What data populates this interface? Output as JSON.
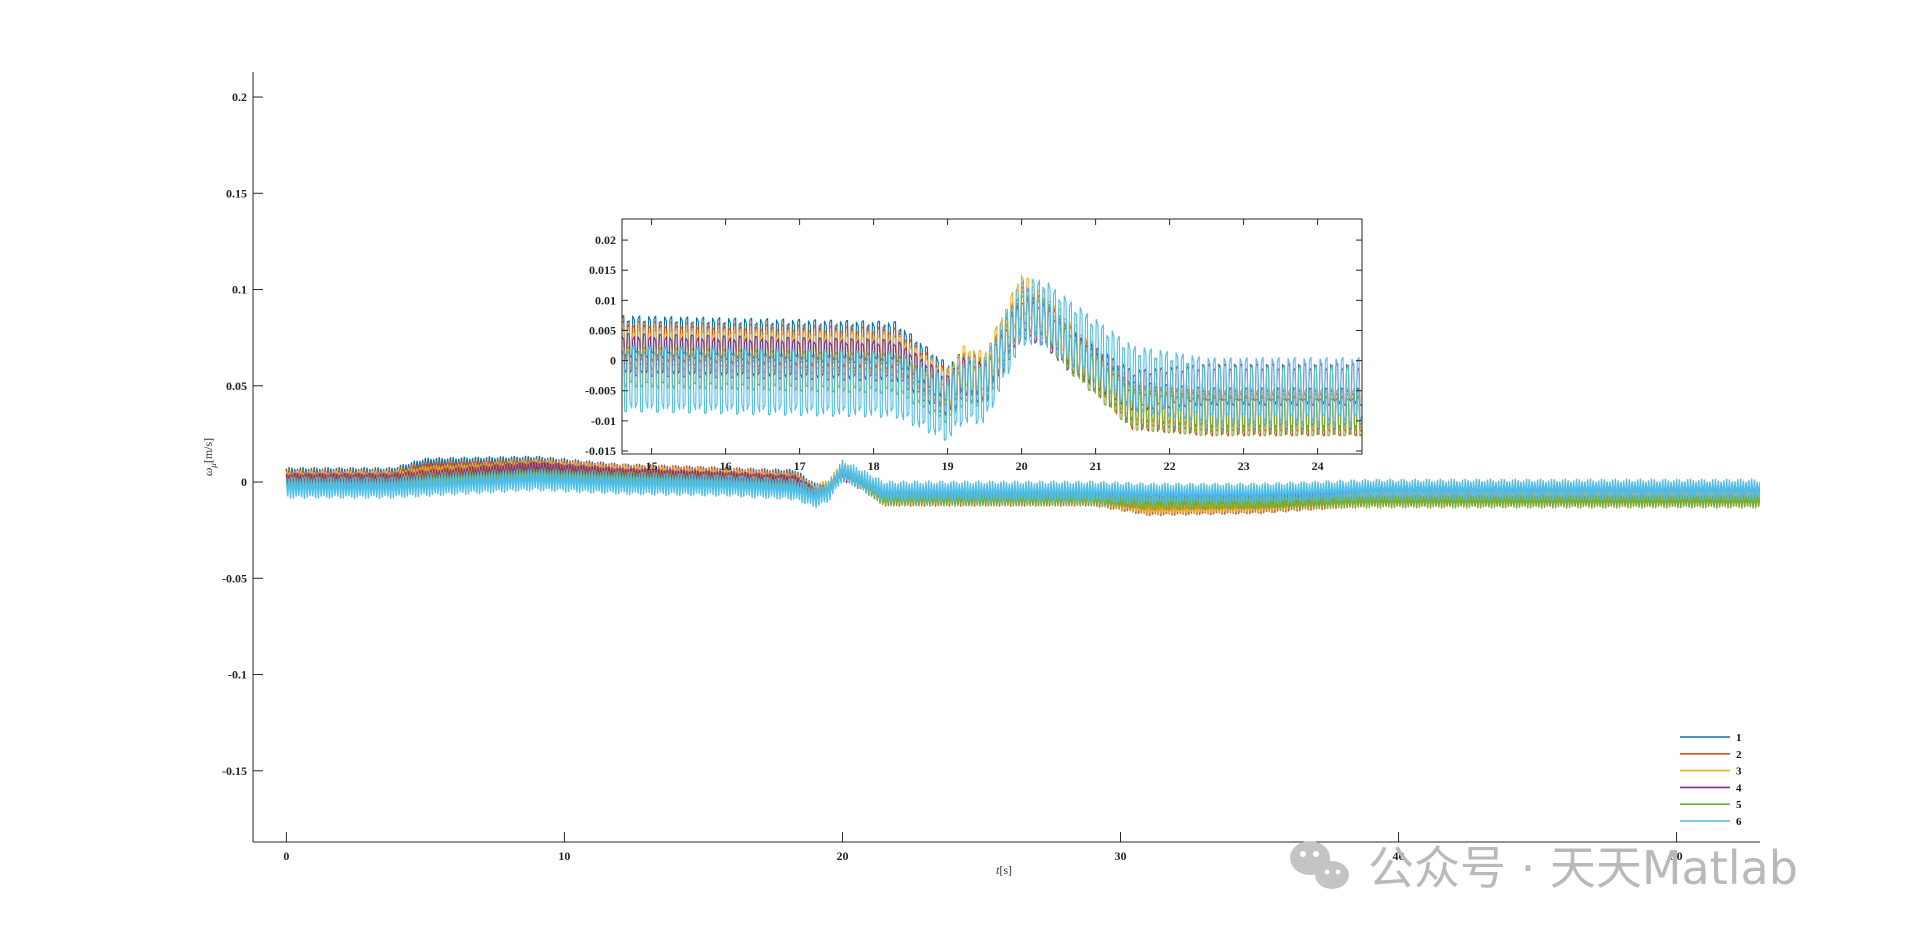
{
  "chart_data": [
    {
      "type": "line",
      "name": "main",
      "xlabel_var": "t",
      "xlabel_unit": "[s]",
      "ylabel_var": "ω",
      "ylabel_sub": "μ",
      "ylabel_unit": "[m/s]",
      "xlim": [
        -1.2,
        53
      ],
      "ylim": [
        -0.187,
        0.213
      ],
      "x_ticks": [
        0,
        10,
        20,
        30,
        40,
        50
      ],
      "y_ticks": [
        0.2,
        0.15,
        0.1,
        0.05,
        0,
        -0.05,
        -0.1,
        -0.15
      ],
      "y_tick_labels": [
        "0.2",
        "0.15",
        "0.1",
        "0.05",
        "0",
        "-0.05",
        "-0.1",
        "-0.15"
      ],
      "grid": false,
      "legend_position": "bottom-right",
      "series": [
        {
          "name": "1",
          "color": "#0072BD",
          "center": [
            [
              0,
              0.004
            ],
            [
              3.8,
              0.004
            ],
            [
              5,
              0.009
            ],
            [
              9,
              0.01
            ],
            [
              12,
              0.006
            ],
            [
              16,
              0.004
            ],
            [
              18.3,
              0.003
            ],
            [
              19,
              -0.004
            ],
            [
              19.5,
              -0.003
            ],
            [
              20,
              0.005
            ],
            [
              20.6,
              0.001
            ],
            [
              21.5,
              -0.008
            ],
            [
              29,
              -0.008
            ],
            [
              31,
              -0.012
            ],
            [
              35,
              -0.011
            ],
            [
              39,
              -0.006
            ],
            [
              53,
              -0.006
            ]
          ],
          "amp": 0.0035
        },
        {
          "name": "2",
          "color": "#D95319",
          "center": [
            [
              0,
              0.003
            ],
            [
              3.8,
              0.003
            ],
            [
              5,
              0.007
            ],
            [
              9,
              0.009
            ],
            [
              12,
              0.006
            ],
            [
              16,
              0.004
            ],
            [
              18.3,
              0.002
            ],
            [
              19,
              -0.005
            ],
            [
              19.5,
              -0.003
            ],
            [
              20,
              0.006
            ],
            [
              20.6,
              0.001
            ],
            [
              21.5,
              -0.009
            ],
            [
              29,
              -0.009
            ],
            [
              31,
              -0.014
            ],
            [
              35,
              -0.013
            ],
            [
              39,
              -0.009
            ],
            [
              53,
              -0.009
            ]
          ],
          "amp": 0.0035
        },
        {
          "name": "3",
          "color": "#EDB120",
          "center": [
            [
              0,
              0.002
            ],
            [
              3.8,
              0.002
            ],
            [
              5,
              0.005
            ],
            [
              9,
              0.008
            ],
            [
              12,
              0.005
            ],
            [
              16,
              0.003
            ],
            [
              18.3,
              0.001
            ],
            [
              19,
              -0.005
            ],
            [
              19.5,
              -0.002
            ],
            [
              20,
              0.007
            ],
            [
              20.6,
              0.002
            ],
            [
              21.5,
              -0.008
            ],
            [
              29,
              -0.008
            ],
            [
              31,
              -0.013
            ],
            [
              35,
              -0.012
            ],
            [
              39,
              -0.008
            ],
            [
              53,
              -0.008
            ]
          ],
          "amp": 0.0035
        },
        {
          "name": "4",
          "color": "#7E2F8E",
          "center": [
            [
              0,
              0.001
            ],
            [
              3.8,
              0.001
            ],
            [
              5,
              0.003
            ],
            [
              9,
              0.007
            ],
            [
              12,
              0.004
            ],
            [
              16,
              0.002
            ],
            [
              18.3,
              0.0
            ],
            [
              19,
              -0.006
            ],
            [
              19.5,
              -0.004
            ],
            [
              20,
              0.004
            ],
            [
              20.6,
              0.0
            ],
            [
              21.5,
              -0.006
            ],
            [
              29,
              -0.006
            ],
            [
              31,
              -0.01
            ],
            [
              35,
              -0.009
            ],
            [
              39,
              -0.004
            ],
            [
              53,
              -0.004
            ]
          ],
          "amp": 0.0035
        },
        {
          "name": "5",
          "color": "#77AC30",
          "center": [
            [
              0,
              -0.001
            ],
            [
              3.8,
              -0.001
            ],
            [
              5,
              0.001
            ],
            [
              9,
              0.004
            ],
            [
              12,
              0.002
            ],
            [
              16,
              0.0
            ],
            [
              18.3,
              -0.002
            ],
            [
              19,
              -0.007
            ],
            [
              19.5,
              -0.004
            ],
            [
              20,
              0.005
            ],
            [
              20.6,
              0.0
            ],
            [
              21.5,
              -0.009
            ],
            [
              29,
              -0.009
            ],
            [
              31,
              -0.011
            ],
            [
              35,
              -0.011
            ],
            [
              39,
              -0.01
            ],
            [
              53,
              -0.01
            ]
          ],
          "amp": 0.0035
        },
        {
          "name": "6",
          "color": "#4DBEEE",
          "center": [
            [
              0,
              -0.003
            ],
            [
              3.8,
              -0.003
            ],
            [
              5,
              -0.002
            ],
            [
              9,
              0.001
            ],
            [
              12,
              -0.001
            ],
            [
              16,
              -0.002
            ],
            [
              18.3,
              -0.004
            ],
            [
              19,
              -0.008
            ],
            [
              19.5,
              -0.005
            ],
            [
              20,
              0.006
            ],
            [
              20.6,
              0.002
            ],
            [
              21.5,
              -0.005
            ],
            [
              29,
              -0.005
            ],
            [
              31,
              -0.006
            ],
            [
              35,
              -0.006
            ],
            [
              39,
              -0.004
            ],
            [
              53,
              -0.004
            ]
          ],
          "amp": 0.0055
        }
      ]
    },
    {
      "type": "line",
      "name": "inset-zoom",
      "xlim": [
        14.6,
        24.6
      ],
      "ylim": [
        -0.0155,
        0.0235
      ],
      "x_ticks": [
        15,
        16,
        17,
        18,
        19,
        20,
        21,
        22,
        23,
        24
      ],
      "y_ticks": [
        0.02,
        0.015,
        0.01,
        0.005,
        0,
        -0.005,
        -0.01,
        -0.015
      ],
      "y_tick_labels": [
        "0.02",
        "0.015",
        "0.01",
        "0.005",
        "0",
        "-0.005",
        "-0.01",
        "-0.015"
      ],
      "grid": false,
      "series": [
        {
          "name": "1",
          "color": "#0072BD",
          "center": [
            [
              14.6,
              0.004
            ],
            [
              18.3,
              0.003
            ],
            [
              19,
              -0.004
            ],
            [
              19.2,
              -0.002
            ],
            [
              19.5,
              -0.003
            ],
            [
              20,
              0.008
            ],
            [
              20.3,
              0.007
            ],
            [
              20.6,
              0.003
            ],
            [
              21.5,
              -0.007
            ],
            [
              22.5,
              -0.008
            ],
            [
              24.6,
              -0.008
            ]
          ],
          "amp": 0.0035
        },
        {
          "name": "2",
          "color": "#D95319",
          "center": [
            [
              14.6,
              0.003
            ],
            [
              18.3,
              0.002
            ],
            [
              19,
              -0.005
            ],
            [
              19.2,
              -0.002
            ],
            [
              19.5,
              -0.003
            ],
            [
              20,
              0.009
            ],
            [
              20.3,
              0.007
            ],
            [
              20.6,
              0.003
            ],
            [
              21.5,
              -0.008
            ],
            [
              22.5,
              -0.009
            ],
            [
              24.6,
              -0.009
            ]
          ],
          "amp": 0.0035
        },
        {
          "name": "3",
          "color": "#EDB120",
          "center": [
            [
              14.6,
              0.002
            ],
            [
              18.3,
              0.001
            ],
            [
              19,
              -0.005
            ],
            [
              19.2,
              -0.001
            ],
            [
              19.5,
              -0.002
            ],
            [
              20,
              0.011
            ],
            [
              20.3,
              0.008
            ],
            [
              20.6,
              0.004
            ],
            [
              21.5,
              -0.007
            ],
            [
              22.5,
              -0.008
            ],
            [
              24.6,
              -0.008
            ]
          ],
          "amp": 0.0035
        },
        {
          "name": "4",
          "color": "#7E2F8E",
          "center": [
            [
              14.6,
              0.001
            ],
            [
              18.3,
              0.0
            ],
            [
              19,
              -0.006
            ],
            [
              19.2,
              -0.003
            ],
            [
              19.5,
              -0.004
            ],
            [
              20,
              0.007
            ],
            [
              20.3,
              0.006
            ],
            [
              20.6,
              0.002
            ],
            [
              21.5,
              -0.005
            ],
            [
              22.5,
              -0.004
            ],
            [
              24.6,
              -0.004
            ]
          ],
          "amp": 0.0035
        },
        {
          "name": "5",
          "color": "#77AC30",
          "center": [
            [
              14.6,
              -0.001
            ],
            [
              18.3,
              -0.002
            ],
            [
              19,
              -0.007
            ],
            [
              19.2,
              -0.004
            ],
            [
              19.5,
              -0.004
            ],
            [
              20,
              0.008
            ],
            [
              20.3,
              0.007
            ],
            [
              20.6,
              0.002
            ],
            [
              21.5,
              -0.008
            ],
            [
              22.5,
              -0.009
            ],
            [
              24.6,
              -0.009
            ]
          ],
          "amp": 0.0035
        },
        {
          "name": "6",
          "color": "#4DBEEE",
          "center": [
            [
              14.6,
              -0.003
            ],
            [
              18.3,
              -0.004
            ],
            [
              19,
              -0.008
            ],
            [
              19.2,
              -0.005
            ],
            [
              19.5,
              -0.005
            ],
            [
              20,
              0.008
            ],
            [
              20.3,
              0.008
            ],
            [
              20.6,
              0.005
            ],
            [
              21.5,
              -0.003
            ],
            [
              22.5,
              -0.005
            ],
            [
              24.6,
              -0.005
            ]
          ],
          "amp": 0.0055
        }
      ]
    }
  ],
  "watermark": {
    "text": "公众号 · 天天Matlab",
    "icon": "wechat-icon",
    "color": "#b9b9b9"
  }
}
